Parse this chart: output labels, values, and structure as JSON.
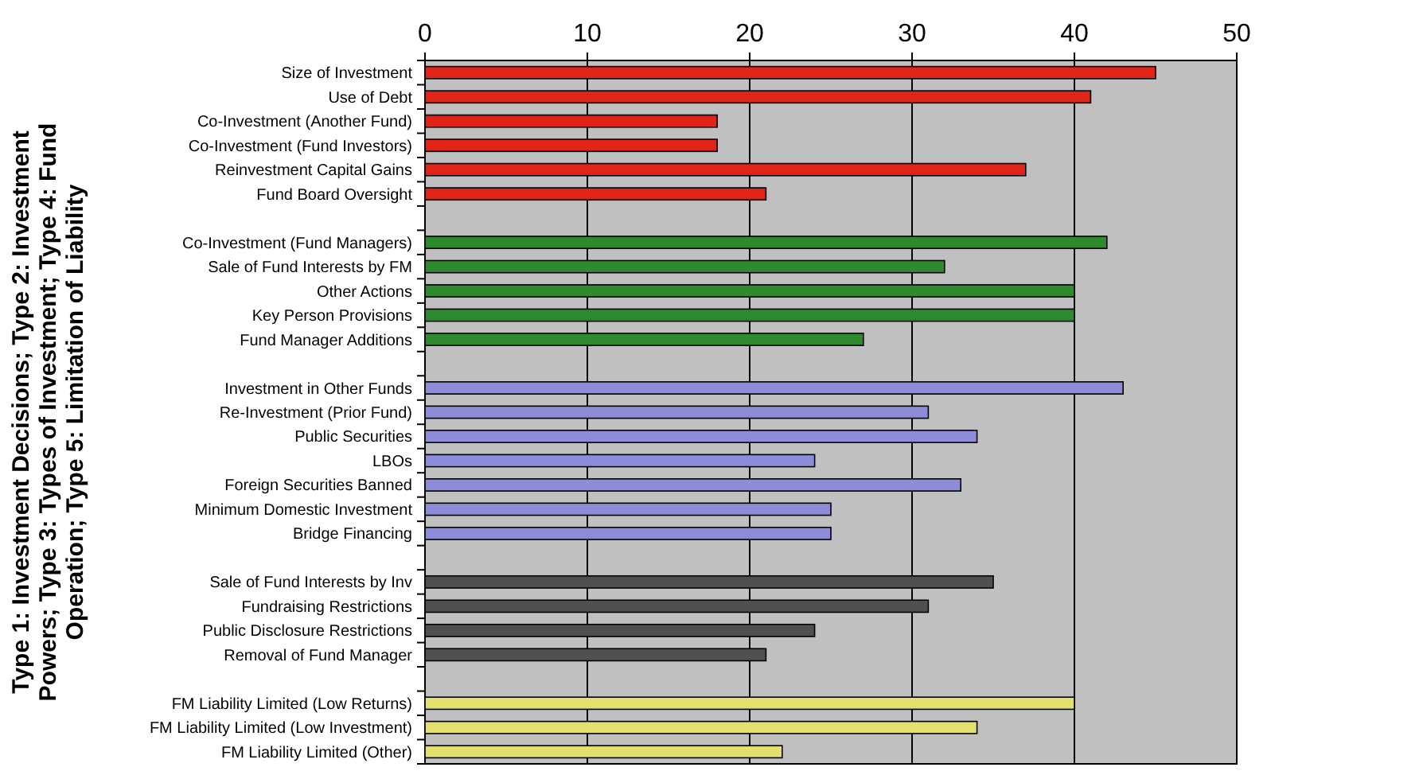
{
  "chart_data": {
    "type": "bar",
    "orientation": "horizontal",
    "ylabel": "Type 1: Investment Decisions; Type 2: Investment Powers; Type 3: Types of Investment; Type 4: Fund Operation; Type 5: Limitation of Liability",
    "categories": [
      "Size of Investment",
      "Use of Debt",
      "Co-Investment (Another Fund)",
      "Co-Investment (Fund Investors)",
      "Reinvestment Capital Gains",
      "Fund Board Oversight",
      null,
      "Co-Investment (Fund Managers)",
      "Sale of Fund Interests by FM",
      "Other Actions",
      "Key Person Provisions",
      "Fund Manager Additions",
      null,
      "Investment in Other Funds",
      "Re-Investment (Prior Fund)",
      "Public Securities",
      "LBOs",
      "Foreign Securities Banned",
      "Minimum Domestic Investment",
      "Bridge Financing",
      null,
      "Sale of Fund Interests by Inv",
      "Fundraising Restrictions",
      "Public Disclosure Restrictions",
      "Removal of Fund Manager",
      null,
      "FM Liability Limited (Low Returns)",
      "FM Liability Limited (Low Investment)",
      "FM Liability Limited (Other)"
    ],
    "values": [
      45,
      41,
      18,
      18,
      37,
      21,
      null,
      42,
      32,
      40,
      40,
      27,
      null,
      43,
      31,
      34,
      24,
      33,
      25,
      25,
      null,
      35,
      31,
      24,
      21,
      null,
      40,
      34,
      22
    ],
    "colors": [
      "#e02418",
      "#e02418",
      "#e02418",
      "#e02418",
      "#e02418",
      "#e02418",
      null,
      "#2f8a2f",
      "#2f8a2f",
      "#2f8a2f",
      "#2f8a2f",
      "#2f8a2f",
      null,
      "#8c8cd8",
      "#8c8cd8",
      "#8c8cd8",
      "#8c8cd8",
      "#8c8cd8",
      "#8c8cd8",
      "#8c8cd8",
      null,
      "#505050",
      "#505050",
      "#505050",
      "#505050",
      null,
      "#e4e070",
      "#e4e070",
      "#e4e070"
    ],
    "xlim": [
      0,
      50
    ],
    "xticks": [
      0,
      10,
      20,
      30,
      40,
      50
    ],
    "grid": "x"
  }
}
